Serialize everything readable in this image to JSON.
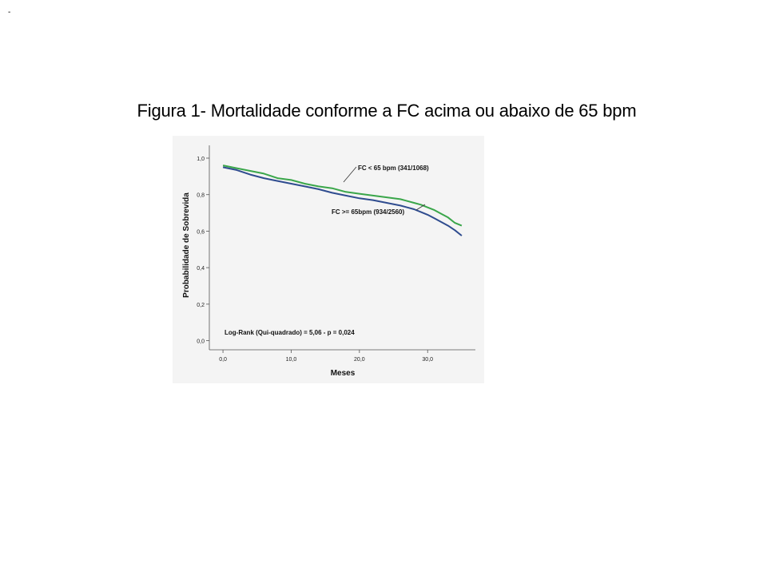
{
  "page": {
    "corner_mark": "-",
    "title": "Figura 1- Mortalidade conforme a FC acima ou abaixo de 65 bpm"
  },
  "chart_data": {
    "type": "line",
    "xlabel": "Meses",
    "ylabel": "Probabilidade de Sobrevida",
    "xlim": [
      -2,
      37
    ],
    "ylim": [
      -0.05,
      1.07
    ],
    "xticks": [
      0,
      10,
      20,
      30
    ],
    "xtick_labels": [
      "0,0",
      "10,0",
      "20,0",
      "30,0"
    ],
    "yticks": [
      0,
      0.2,
      0.4,
      0.6,
      0.8,
      1.0
    ],
    "ytick_labels": [
      "0,0",
      "0,2",
      "0,4",
      "0,6",
      "0,8",
      "1,0"
    ],
    "grid": false,
    "annotation": "Log-Rank (Qui-quadrado) = 5,06 - p = 0,024",
    "series": [
      {
        "name": "FC < 65 bpm (341/1068)",
        "color": "#3aa64a",
        "x": [
          0,
          2,
          4,
          6,
          8,
          10,
          12,
          14,
          16,
          18,
          20,
          22,
          24,
          26,
          28,
          29,
          30,
          31,
          32,
          33,
          34,
          35
        ],
        "y": [
          0.96,
          0.945,
          0.93,
          0.915,
          0.89,
          0.88,
          0.86,
          0.845,
          0.835,
          0.815,
          0.805,
          0.795,
          0.785,
          0.775,
          0.755,
          0.745,
          0.73,
          0.715,
          0.695,
          0.675,
          0.645,
          0.63
        ]
      },
      {
        "name": "FC >= 65bpm (934/2560)",
        "color": "#2f4c8f",
        "x": [
          0,
          2,
          4,
          6,
          8,
          10,
          12,
          14,
          16,
          18,
          20,
          22,
          24,
          26,
          28,
          29,
          30,
          31,
          32,
          33,
          34,
          35
        ],
        "y": [
          0.95,
          0.935,
          0.91,
          0.89,
          0.875,
          0.86,
          0.845,
          0.83,
          0.81,
          0.795,
          0.78,
          0.77,
          0.755,
          0.74,
          0.72,
          0.705,
          0.69,
          0.67,
          0.65,
          0.63,
          0.605,
          0.575
        ]
      }
    ]
  }
}
